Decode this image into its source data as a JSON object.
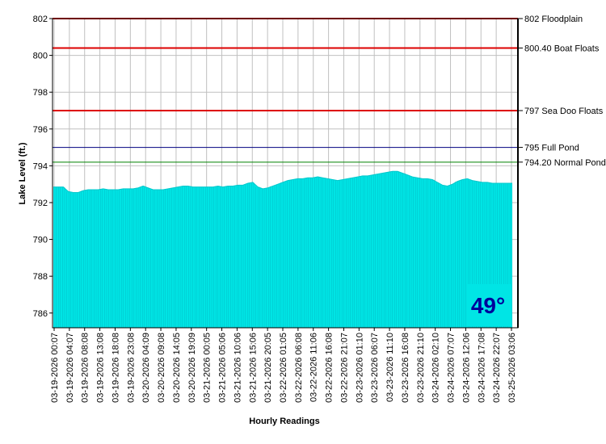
{
  "chart_data": {
    "type": "area",
    "title": "",
    "xlabel": "Hourly Readings",
    "ylabel": "Lake Level (ft.)",
    "ylim": [
      785.2,
      802
    ],
    "y_ticks": [
      786,
      788,
      790,
      792,
      794,
      796,
      798,
      800,
      802
    ],
    "grid": true,
    "x_tick_labels": [
      "03-19-2026 00:07",
      "03-19-2026 04:07",
      "03-19-2026 08:08",
      "03-19-2026 13:08",
      "03-19-2026 18:08",
      "03-19-2026 23:08",
      "03-20-2026 04:09",
      "03-20-2026 09:08",
      "03-20-2026 14:05",
      "03-20-2026 19:09",
      "03-21-2026 00:05",
      "03-21-2026 05:06",
      "03-21-2026 10:06",
      "03-21-2026 15:06",
      "03-21-2026 20:05",
      "03-22-2026 01:05",
      "03-22-2026 06:08",
      "03-22-2026 11:06",
      "03-22-2026 16:08",
      "03-22-2026 21:07",
      "03-23-2026 01:10",
      "03-23-2026 06:07",
      "03-23-2026 11:10",
      "03-23-2026 16:08",
      "03-23-2026 21:10",
      "03-24-2026 02:10",
      "03-24-2026 07:07",
      "03-24-2026 12:06",
      "03-24-2026 17:08",
      "03-24-2026 22:07",
      "03-25-2026 03:06"
    ],
    "series": [
      {
        "values": [
          792.85,
          792.85,
          792.85,
          792.6,
          792.55,
          792.55,
          792.65,
          792.7,
          792.7,
          792.7,
          792.75,
          792.7,
          792.7,
          792.7,
          792.75,
          792.75,
          792.75,
          792.8,
          792.9,
          792.8,
          792.7,
          792.7,
          792.7,
          792.75,
          792.8,
          792.85,
          792.9,
          792.9,
          792.85,
          792.85,
          792.85,
          792.85,
          792.85,
          792.9,
          792.85,
          792.9,
          792.9,
          792.95,
          792.95,
          793.05,
          793.1,
          792.85,
          792.75,
          792.8,
          792.9,
          793.0,
          793.1,
          793.2,
          793.25,
          793.3,
          793.3,
          793.35,
          793.35,
          793.4,
          793.35,
          793.3,
          793.25,
          793.2,
          793.25,
          793.3,
          793.35,
          793.4,
          793.45,
          793.45,
          793.5,
          793.55,
          793.6,
          793.65,
          793.7,
          793.7,
          793.6,
          793.5,
          793.4,
          793.35,
          793.3,
          793.3,
          793.25,
          793.1,
          792.95,
          792.9,
          793.0,
          793.15,
          793.25,
          793.3,
          793.2,
          793.15,
          793.1,
          793.1,
          793.05,
          793.05,
          793.05,
          793.05,
          793.05
        ],
        "color": "#00e5e5"
      }
    ],
    "reference_lines": [
      {
        "value": 802,
        "label": "802 Floodplain",
        "color": "#dd0000"
      },
      {
        "value": 800.4,
        "label": "800.40 Boat Floats",
        "color": "#dd0000"
      },
      {
        "value": 797,
        "label": "797 Sea Doo Floats",
        "color": "#dd0000"
      },
      {
        "value": 795,
        "label": "795 Full Pond",
        "color": "#000080"
      },
      {
        "value": 794.2,
        "label": "794.20 Normal Pond",
        "color": "#008000"
      }
    ]
  },
  "temperature": {
    "value": "49°",
    "box_color": "#00e5e5",
    "text_color": "#00009b"
  }
}
